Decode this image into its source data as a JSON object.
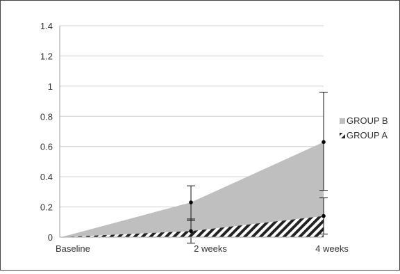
{
  "chart_data": {
    "type": "area",
    "categories": [
      "Baseline",
      "2 weeks",
      "4 weeks"
    ],
    "ylim": [
      0,
      1.4
    ],
    "yticks": [
      "0",
      "0.2",
      "0.4",
      "0.6",
      "0.8",
      "1",
      "1.2",
      "1.4"
    ],
    "grid": true,
    "legend_position": "right",
    "series": [
      {
        "name": "GROUP B",
        "values": [
          0,
          0.23,
          0.63
        ],
        "error_low": [
          0,
          0.11,
          0.31
        ],
        "error_high": [
          0,
          0.34,
          0.96
        ],
        "color": "#bfbfbf"
      },
      {
        "name": "GROUP A",
        "values": [
          0,
          0.04,
          0.14
        ],
        "error_low": [
          0,
          -0.04,
          0.02
        ],
        "error_high": [
          0,
          0.12,
          0.26
        ],
        "pattern": "diagonal-hatch",
        "color": "#333333"
      }
    ]
  }
}
